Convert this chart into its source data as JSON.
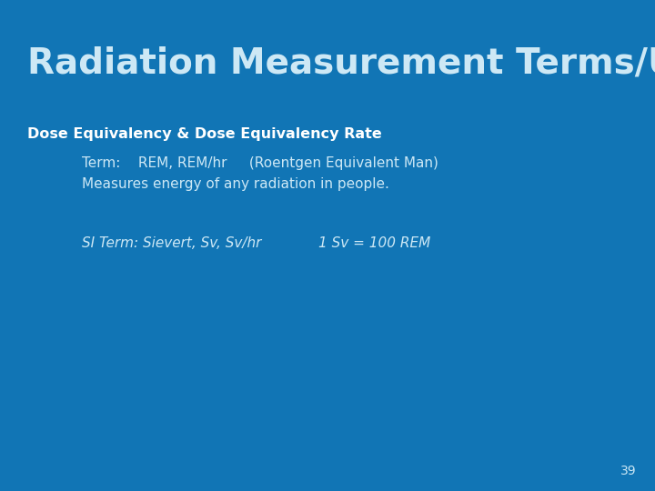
{
  "background_color": "#1175b5",
  "title": "Radiation Measurement Terms/Units",
  "title_color": "#cde8f5",
  "title_fontsize": 28,
  "subtitle": "Dose Equivalency & Dose Equivalency Rate",
  "subtitle_color": "#ffffff",
  "subtitle_fontsize": 11.5,
  "line1": "Term:    REM, REM/hr     (Roentgen Equivalent Man)",
  "line2": "Measures energy of any radiation in people.",
  "body_color": "#cde8f5",
  "body_fontsize": 11,
  "si_term": "SI Term: Sievert, Sv, Sv/hr",
  "si_equiv": "1 Sv = 100 REM",
  "si_color": "#cde8f5",
  "si_fontsize": 11,
  "page_number": "39",
  "page_color": "#cde8f5",
  "page_fontsize": 10
}
